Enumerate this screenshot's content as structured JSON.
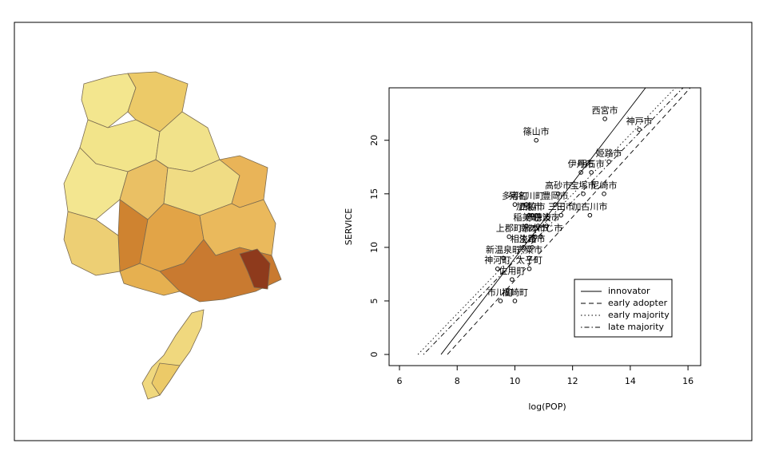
{
  "chart_data": {
    "type": "scatter",
    "xlabel": "log(POP)",
    "ylabel": "SERVICE",
    "xlim": [
      5.64,
      16.44
    ],
    "ylim": [
      -1.04,
      24.9
    ],
    "xticks": [
      6,
      8,
      10,
      12,
      14,
      16
    ],
    "yticks": [
      0,
      5,
      10,
      15,
      20
    ],
    "point_color": "#000000",
    "labels": [
      "西宮市",
      "神戸市",
      "篠山市",
      "姫路市",
      "伊丹市",
      "明石市",
      "高砂市",
      "宝塚市",
      "尼崎市",
      "加古川市",
      "多可町",
      "猪名川町",
      "豊岡市",
      "西脇市",
      "三田市",
      "加東市",
      "稲美町",
      "丹波市",
      "赤穂市",
      "上郡町",
      "洲本市",
      "南あわじ市",
      "相生市",
      "淡路市",
      "新温泉町",
      "宍粟市",
      "神河町",
      "太子町",
      "佐用町",
      "市川町",
      "福崎町"
    ],
    "x": [
      13.12,
      14.31,
      10.74,
      13.26,
      12.29,
      12.65,
      11.5,
      12.37,
      13.09,
      12.6,
      10.0,
      10.4,
      11.4,
      10.6,
      11.6,
      10.5,
      10.4,
      11.1,
      10.8,
      9.8,
      10.7,
      10.9,
      10.3,
      10.6,
      9.6,
      10.5,
      9.4,
      10.5,
      9.9,
      9.5,
      10.0
    ],
    "y": [
      22,
      21,
      20,
      18,
      17,
      17,
      15,
      15,
      15,
      13,
      14,
      14,
      14,
      13,
      13,
      13,
      12,
      12,
      12,
      11,
      11,
      11,
      10,
      10,
      9,
      9,
      8,
      8,
      7,
      5,
      5
    ],
    "lines": [
      {
        "name": "innovator",
        "style": "solid",
        "x": [
          7.44,
          14.53
        ],
        "y": [
          0,
          24.9
        ]
      },
      {
        "name": "early adopter",
        "style": "dashed",
        "x": [
          7.66,
          16.08
        ],
        "y": [
          0,
          24.9
        ]
      },
      {
        "name": "early majority",
        "style": "dotted",
        "x": [
          6.64,
          15.56
        ],
        "y": [
          0,
          24.9
        ]
      },
      {
        "name": "late majority",
        "style": "dotdash",
        "x": [
          6.83,
          15.83
        ],
        "y": [
          0,
          24.9
        ]
      }
    ]
  }
}
